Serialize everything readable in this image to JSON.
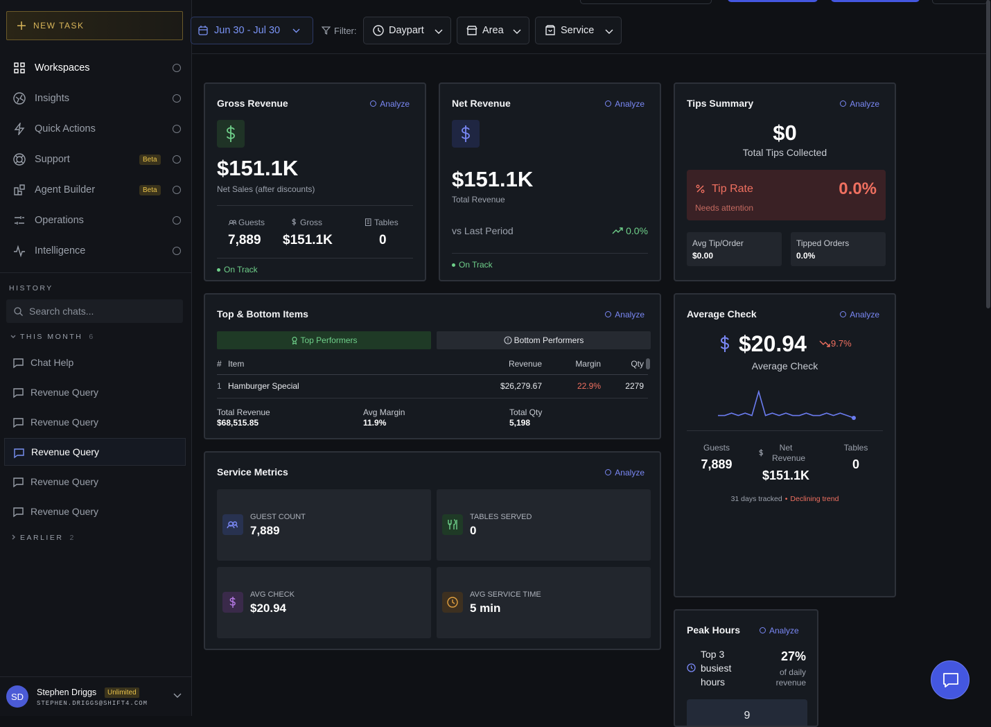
{
  "sidebar": {
    "new_task": "NEW TASK",
    "nav": [
      {
        "label": "Workspaces"
      },
      {
        "label": "Insights"
      },
      {
        "label": "Quick Actions"
      },
      {
        "label": "Support",
        "badge": "Beta"
      },
      {
        "label": "Agent Builder",
        "badge": "Beta"
      },
      {
        "label": "Operations"
      },
      {
        "label": "Intelligence"
      }
    ],
    "history_label": "HISTORY",
    "search_placeholder": "Search chats...",
    "groups": [
      {
        "label": "THIS MONTH",
        "count": 6,
        "chats": [
          "Chat Help",
          "Revenue Query",
          "Revenue Query",
          "Revenue Query",
          "Revenue Query",
          "Revenue Query"
        ]
      },
      {
        "label": "EARLIER",
        "count": 2
      }
    ],
    "user": {
      "initials": "SD",
      "name": "Stephen Driggs",
      "plan": "Unlimited",
      "email": "STEPHEN.DRIGGS@SHIFT4.COM"
    }
  },
  "toolbar": {
    "date_range": "Jun 30 - Jul 30",
    "filter_label": "Filter:",
    "filters": [
      "Daypart",
      "Area",
      "Service"
    ]
  },
  "cards": {
    "gross_revenue": {
      "title": "Gross Revenue",
      "action": "Analyze",
      "value": "$151.1K",
      "caption": "Net Sales (after discounts)",
      "stats": [
        {
          "label": "Guests",
          "value": "7,889"
        },
        {
          "label": "Gross",
          "value": "$151.1K"
        },
        {
          "label": "Tables",
          "value": "0"
        }
      ],
      "status": "On Track"
    },
    "net_revenue": {
      "title": "Net Revenue",
      "action": "Analyze",
      "value": "$151.1K",
      "caption": "Total Revenue",
      "comparison_label": "vs Last Period",
      "comparison_value": "0.0%",
      "status": "On Track"
    },
    "tips_summary": {
      "title": "Tips Summary",
      "action": "Analyze",
      "value": "$0",
      "caption": "Total Tips Collected",
      "alert": {
        "label": "Tip Rate",
        "value": "0.0%",
        "note": "Needs attention"
      },
      "stats": [
        {
          "label": "Avg Tip/Order",
          "value": "$0.00"
        },
        {
          "label": "Tipped Orders",
          "value": "0.0%"
        }
      ]
    },
    "top_bottom_items": {
      "title": "Top & Bottom Items",
      "action": "Analyze",
      "tabs": [
        "Top Performers",
        "Bottom Performers"
      ],
      "columns": [
        "#",
        "Item",
        "Revenue",
        "Margin",
        "Qty"
      ],
      "rows": [
        [
          "1",
          "Hamburger Special",
          "$26,279.67",
          "22.9%",
          "2279"
        ]
      ],
      "totals": [
        {
          "label": "Total Revenue",
          "value": "$68,515.85"
        },
        {
          "label": "Avg Margin",
          "value": "11.9%"
        },
        {
          "label": "Total Qty",
          "value": "5,198"
        }
      ]
    },
    "service_metrics": {
      "title": "Service Metrics",
      "action": "Analyze",
      "tiles": [
        {
          "label": "GUEST COUNT",
          "value": "7,889"
        },
        {
          "label": "TABLES SERVED",
          "value": "0"
        },
        {
          "label": "AVG CHECK",
          "value": "$20.94"
        },
        {
          "label": "AVG SERVICE TIME",
          "value": "5 min"
        }
      ]
    },
    "average_check": {
      "title": "Average Check",
      "action": "Analyze",
      "value": "$20.94",
      "change": "9.7%",
      "caption": "Average Check",
      "trend": [
        2,
        2,
        3,
        2,
        3,
        2,
        12,
        2,
        3,
        2,
        3,
        2,
        2,
        3,
        2,
        2,
        3,
        2,
        3,
        2,
        1
      ],
      "stats": [
        {
          "label": "Guests",
          "value": "7,889"
        },
        {
          "label": "Net Revenue",
          "value": "$151.1K"
        },
        {
          "label": "Tables",
          "value": "0"
        }
      ],
      "footer": {
        "days": "31 days tracked",
        "trend_label": "Declining trend"
      }
    },
    "peak_hours": {
      "title": "Peak Hours",
      "action": "Analyze",
      "label": "Top 3 busiest hours",
      "value": "27%",
      "caption": "of daily revenue",
      "preview": "9"
    }
  }
}
